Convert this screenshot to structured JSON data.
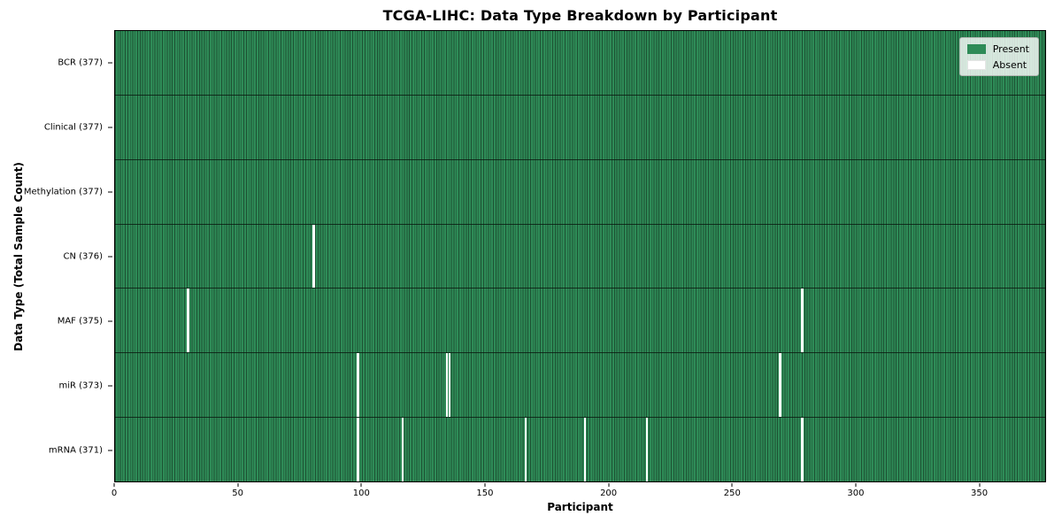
{
  "chart_data": {
    "type": "heatmap",
    "title": "TCGA-LIHC: Data Type Breakdown by Participant",
    "xlabel": "Participant",
    "ylabel": "Data Type (Total Sample Count)",
    "xlim": [
      0,
      377
    ],
    "x_ticks": [
      0,
      50,
      100,
      150,
      200,
      250,
      300,
      350
    ],
    "n_participants": 377,
    "grid": false,
    "legend_position": "upper-right",
    "legend": [
      {
        "label": "Present",
        "color": "#2e8b57"
      },
      {
        "label": "Absent",
        "color": "#ffffff"
      }
    ],
    "rows": [
      {
        "data_type": "BCR",
        "label": "BCR (377)",
        "present_count": 377,
        "absent_participants": []
      },
      {
        "data_type": "Clinical",
        "label": "Clinical (377)",
        "present_count": 377,
        "absent_participants": []
      },
      {
        "data_type": "Methylation",
        "label": "Methylation (377)",
        "present_count": 377,
        "absent_participants": []
      },
      {
        "data_type": "CN",
        "label": "CN (376)",
        "present_count": 376,
        "absent_participants": [
          80
        ]
      },
      {
        "data_type": "MAF",
        "label": "MAF (375)",
        "present_count": 375,
        "absent_participants": [
          29,
          278
        ]
      },
      {
        "data_type": "miR",
        "label": "miR (373)",
        "present_count": 373,
        "absent_participants": [
          98,
          134,
          135,
          269
        ]
      },
      {
        "data_type": "mRNA",
        "label": "mRNA (371)",
        "present_count": 371,
        "absent_participants": [
          98,
          116,
          166,
          190,
          215,
          278
        ]
      }
    ],
    "colors": {
      "present": "#2e8b57",
      "absent": "#ffffff",
      "cell_edge": "#1d5233",
      "row_divider": "rgba(10,24,15,0.8)",
      "plot_border": "#000000",
      "legend_bg": "rgba(255,255,255,0.8)",
      "legend_border": "#b2b6b2"
    }
  }
}
